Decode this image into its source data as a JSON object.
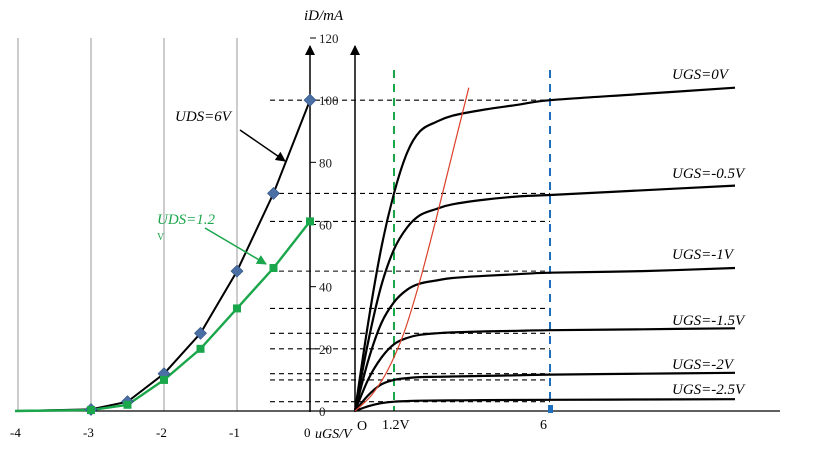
{
  "chart_data": [
    {
      "type": "line",
      "title": "",
      "xlabel": "uGS/V",
      "ylabel": "iD/mA",
      "x_ticks": [
        "-4",
        "-3",
        "-2",
        "-1",
        "0"
      ],
      "y_ticks": [
        "0",
        "20",
        "40",
        "60",
        "80",
        "100",
        "120"
      ],
      "xlim": [
        -4,
        0
      ],
      "ylim": [
        0,
        120
      ],
      "grid": "vertical",
      "series": [
        {
          "name": "UDS=6V",
          "color": "#000000",
          "marker": "diamond",
          "marker_color": "#4a6fa5",
          "x": [
            -3,
            -2.5,
            -2,
            -1.5,
            -1,
            -0.5,
            0
          ],
          "y": [
            0.5,
            3,
            12,
            25,
            45,
            70,
            100
          ]
        },
        {
          "name": "UDS=1.2V",
          "color": "#1aa64a",
          "marker": "square",
          "marker_color": "#1aa64a",
          "x": [
            -3,
            -2.5,
            -2,
            -1.5,
            -1,
            -0.5,
            0
          ],
          "y": [
            0.3,
            2,
            10,
            20,
            33,
            46,
            61
          ]
        }
      ]
    },
    {
      "type": "line",
      "title": "",
      "xlabel": "",
      "ylabel": "",
      "x_ticks": [
        "O",
        "1.2V",
        "6"
      ],
      "xlim": [
        0,
        10
      ],
      "ylim": [
        0,
        120
      ],
      "vlines": [
        {
          "x": 1.2,
          "color": "#1aa64a",
          "style": "dashed"
        },
        {
          "x": 6,
          "color": "#1f6fbf",
          "style": "dashed"
        }
      ],
      "series": [
        {
          "name": "UGS=0V",
          "color": "#000000",
          "x": [
            0,
            0.4,
            0.8,
            1.2,
            1.6,
            2,
            2.5,
            3,
            4,
            5,
            6,
            8,
            10
          ],
          "y": [
            0,
            28,
            52,
            70,
            83,
            90,
            93,
            95,
            97,
            98.5,
            100,
            102,
            104
          ]
        },
        {
          "name": "UGS=-0.5V",
          "color": "#000000",
          "x": [
            0,
            0.4,
            0.8,
            1.2,
            1.6,
            2,
            2.5,
            3,
            4,
            5,
            6,
            8,
            10
          ],
          "y": [
            0,
            22,
            40,
            52,
            59,
            63,
            65,
            66.5,
            68,
            69,
            69.5,
            71,
            72.5
          ]
        },
        {
          "name": "UGS=-1V",
          "color": "#000000",
          "x": [
            0,
            0.4,
            0.8,
            1.2,
            1.6,
            2,
            2.5,
            3,
            4,
            5,
            6,
            8,
            10
          ],
          "y": [
            0,
            16,
            28,
            35,
            39,
            41,
            42,
            42.8,
            43.5,
            44,
            44.5,
            45,
            46
          ]
        },
        {
          "name": "UGS=-1.5V",
          "color": "#000000",
          "x": [
            0,
            0.4,
            0.8,
            1.2,
            1.6,
            2,
            2.5,
            3,
            4,
            5,
            6,
            8,
            10
          ],
          "y": [
            0,
            10,
            17,
            21.5,
            23.5,
            24.5,
            25,
            25.3,
            25.6,
            25.8,
            26,
            26.3,
            26.6
          ]
        },
        {
          "name": "UGS=-2V",
          "color": "#000000",
          "x": [
            0,
            0.4,
            0.8,
            1.2,
            1.6,
            2,
            2.5,
            3,
            4,
            5,
            6,
            8,
            10
          ],
          "y": [
            0,
            5,
            8.5,
            10,
            10.6,
            10.9,
            11,
            11.1,
            11.3,
            11.5,
            11.7,
            12,
            12.3
          ]
        },
        {
          "name": "UGS=-2.5V",
          "color": "#000000",
          "x": [
            0,
            0.4,
            0.8,
            1.2,
            1.6,
            2,
            3,
            4,
            6,
            8,
            10
          ],
          "y": [
            0,
            1.5,
            2.5,
            3,
            3.2,
            3.3,
            3.4,
            3.5,
            3.6,
            3.7,
            3.8
          ]
        },
        {
          "name": "",
          "color": "#d9412b",
          "x": [
            0,
            0.5,
            1,
            1.5,
            2,
            2.5,
            3,
            3.5
          ],
          "y": [
            0,
            5,
            13,
            25,
            42,
            62,
            83,
            104
          ]
        }
      ]
    }
  ],
  "labels": {
    "ylabel": "iD/mA",
    "xlabel": "uGS/V",
    "origin": "O",
    "uds6": "UDS=6V",
    "uds12": "UDS=1.2",
    "uds12_tail": "V",
    "ugs": [
      "UGS=0V",
      "UGS=-0.5V",
      "UGS=-1V",
      "UGS=-1.5V",
      "UGS=-2V",
      "UGS=-2.5V"
    ]
  }
}
